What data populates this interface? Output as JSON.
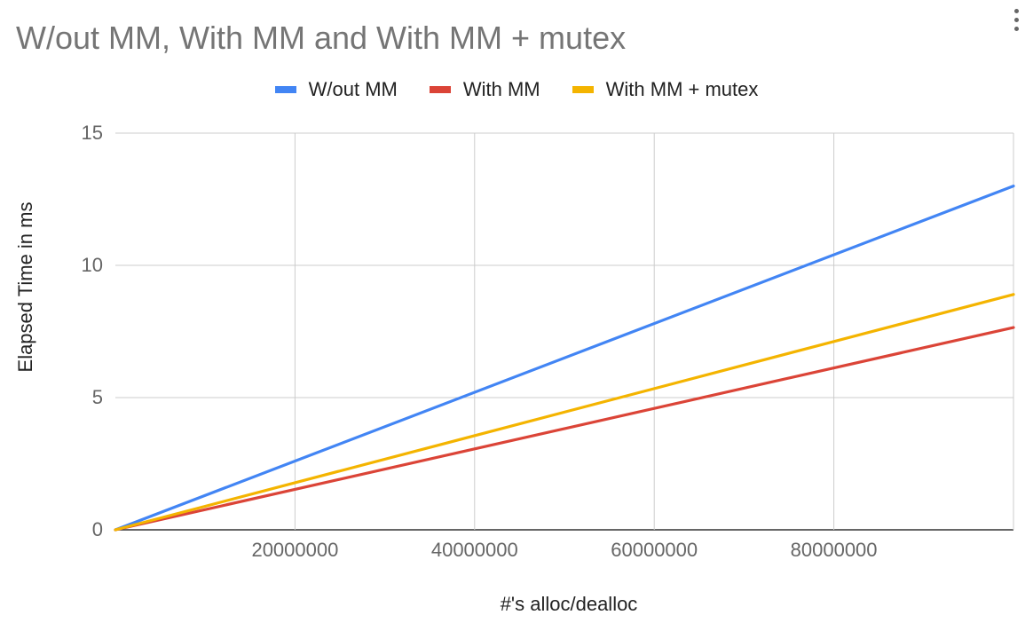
{
  "title": "W/out MM, With MM and With MM + mutex",
  "menu_icon": "more-vert-icon",
  "chart_data": {
    "type": "line",
    "title": "W/out MM, With MM and With MM + mutex",
    "xlabel": "#'s alloc/dealloc",
    "ylabel": "Elapsed Time in ms",
    "xlim": [
      0,
      100000000
    ],
    "ylim": [
      0,
      15
    ],
    "x_ticks": [
      20000000,
      40000000,
      60000000,
      80000000
    ],
    "x_tick_labels": [
      "20000000",
      "40000000",
      "60000000",
      "80000000"
    ],
    "y_ticks": [
      0,
      5,
      10,
      15
    ],
    "y_tick_labels": [
      "0",
      "5",
      "10",
      "15"
    ],
    "grid": true,
    "legend_position": "top",
    "x": [
      0,
      100000000
    ],
    "series": [
      {
        "name": "W/out MM",
        "color": "#4285f4",
        "values": [
          0,
          13.0
        ]
      },
      {
        "name": "With MM",
        "color": "#db4437",
        "values": [
          0,
          7.65
        ]
      },
      {
        "name": "With MM + mutex",
        "color": "#f4b400",
        "values": [
          0,
          8.9
        ]
      }
    ]
  }
}
